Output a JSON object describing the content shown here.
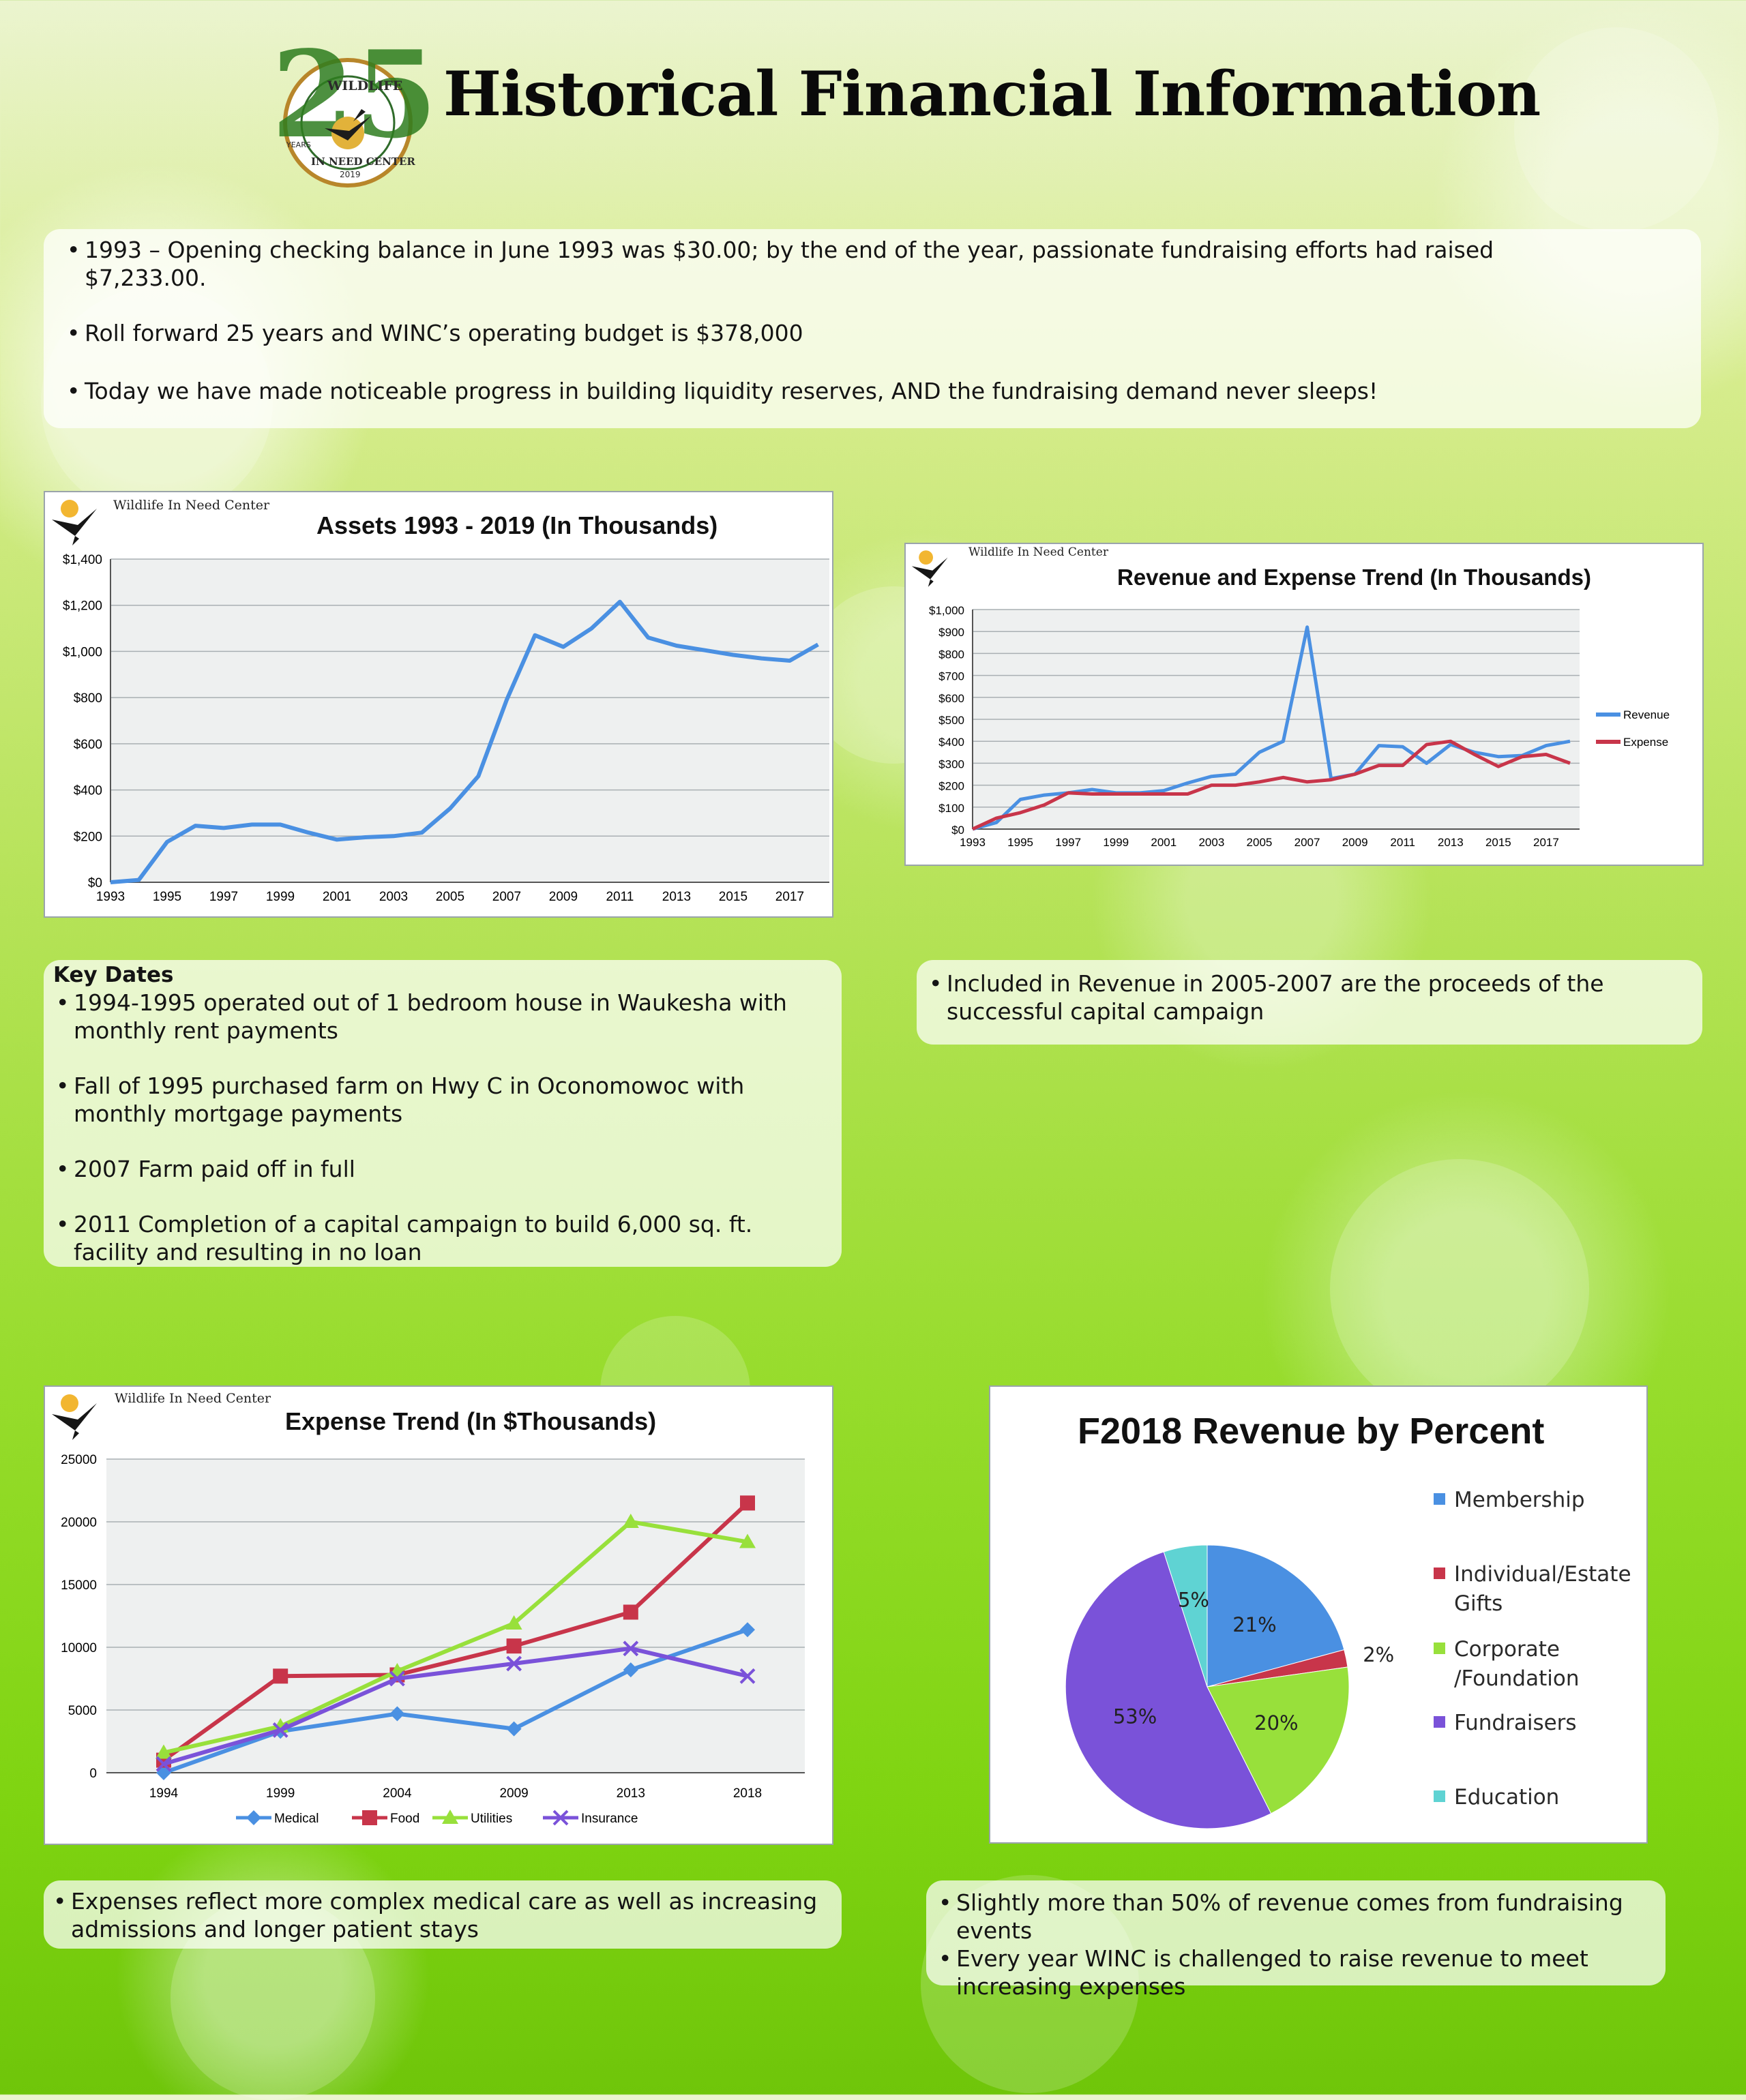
{
  "header": {
    "title": "Historical Financial Information",
    "logo_text": {
      "number": "25",
      "top": "WILDLIFE",
      "bottom": "IN NEED CENTER",
      "side": "YEARS",
      "year": "2019"
    }
  },
  "intro": {
    "bullets": [
      "1993 – Opening checking balance in June 1993 was $30.00; by the end of the year, passionate fundraising efforts had raised $7,233.00.",
      "Roll forward 25 years and WINC’s operating budget is $378,000",
      "Today we have made noticeable progress in building liquidity reserves, AND the fundraising demand never sleeps!"
    ]
  },
  "org_name": "Wildlife In Need Center",
  "key_dates": {
    "heading": "Key Dates",
    "items": [
      "1994-1995 operated out of 1 bedroom house in Waukesha with monthly rent payments",
      "Fall of 1995 purchased farm on Hwy C in Oconomowoc with monthly mortgage payments",
      "2007 Farm paid off in full",
      "2011 Completion of a capital campaign to build 6,000 sq. ft. facility and resulting in no loan"
    ]
  },
  "revenue_note": "Included in Revenue in 2005-2007 are the proceeds of the successful capital campaign",
  "expense_note": "Expenses reflect more complex medical care as well as increasing admissions and longer patient stays",
  "pie_notes": [
    "Slightly more than 50% of revenue comes from fundraising events",
    "Every year WINC is challenged to raise revenue to meet increasing expenses"
  ],
  "colors": {
    "blue": "#4a90e2",
    "red": "#c8354a",
    "green": "#98e03b",
    "purple": "#7a52d9",
    "cyan": "#5fd3d3",
    "grid_bg": "#eef0f0"
  },
  "chart_data": [
    {
      "type": "line",
      "title": "Assets 1993 - 2019 (In Thousands)",
      "xlabel": "",
      "ylabel": "",
      "x": [
        1993,
        1994,
        1995,
        1996,
        1997,
        1998,
        1999,
        2000,
        2001,
        2002,
        2003,
        2004,
        2005,
        2006,
        2007,
        2008,
        2009,
        2010,
        2011,
        2012,
        2013,
        2014,
        2015,
        2016,
        2017,
        2018
      ],
      "x_ticks": [
        "1993",
        "1995",
        "1997",
        "1999",
        "2001",
        "2003",
        "2005",
        "2007",
        "2009",
        "2011",
        "2013",
        "2015",
        "2017"
      ],
      "y_ticks": [
        "$0",
        "$200",
        "$400",
        "$600",
        "$800",
        "$1,000",
        "$1,200",
        "$1,400"
      ],
      "ylim": [
        0,
        1400
      ],
      "grid": true,
      "series": [
        {
          "values": [
            0,
            10,
            175,
            245,
            235,
            250,
            250,
            215,
            185,
            195,
            200,
            215,
            320,
            460,
            790,
            1070,
            1020,
            1100,
            1215,
            1060,
            1025,
            1005,
            985,
            970,
            960,
            1030
          ]
        }
      ]
    },
    {
      "type": "line",
      "title": "Revenue and Expense Trend (In Thousands)",
      "xlabel": "",
      "ylabel": "",
      "x": [
        1993,
        1994,
        1995,
        1996,
        1997,
        1998,
        1999,
        2000,
        2001,
        2002,
        2003,
        2004,
        2005,
        2006,
        2007,
        2008,
        2009,
        2010,
        2011,
        2012,
        2013,
        2014,
        2015,
        2016,
        2017,
        2018
      ],
      "x_ticks": [
        "1993",
        "1995",
        "1997",
        "1999",
        "2001",
        "2003",
        "2005",
        "2007",
        "2009",
        "2011",
        "2013",
        "2015",
        "2017"
      ],
      "y_ticks": [
        "$0",
        "$100",
        "$200",
        "$300",
        "$400",
        "$500",
        "$600",
        "$700",
        "$800",
        "$900",
        "$1,000"
      ],
      "ylim": [
        0,
        1000
      ],
      "grid": true,
      "legend": "right",
      "series": [
        {
          "name": "Revenue",
          "values": [
            0,
            30,
            135,
            155,
            165,
            180,
            165,
            165,
            175,
            210,
            240,
            250,
            350,
            400,
            920,
            230,
            250,
            380,
            375,
            300,
            385,
            350,
            330,
            335,
            380,
            400
          ]
        },
        {
          "name": "Expense",
          "values": [
            0,
            50,
            75,
            110,
            165,
            160,
            160,
            160,
            160,
            160,
            200,
            200,
            215,
            235,
            215,
            225,
            250,
            290,
            290,
            385,
            400,
            340,
            285,
            330,
            340,
            300
          ]
        }
      ]
    },
    {
      "type": "line",
      "title": "Expense Trend (In $Thousands)",
      "xlabel": "",
      "ylabel": "",
      "categories": [
        "1994",
        "1999",
        "2004",
        "2009",
        "2013",
        "2018"
      ],
      "y_ticks": [
        "0",
        "5000",
        "10000",
        "15000",
        "20000",
        "25000"
      ],
      "ylim": [
        0,
        25000
      ],
      "grid": true,
      "legend": "bottom",
      "series": [
        {
          "name": "Medical",
          "marker": "diamond",
          "values": [
            0,
            3300,
            4700,
            3500,
            8200,
            11400
          ]
        },
        {
          "name": "Food",
          "marker": "square",
          "values": [
            1000,
            7700,
            7800,
            10100,
            12800,
            21500
          ]
        },
        {
          "name": "Utilities",
          "marker": "triangle",
          "values": [
            1600,
            3700,
            8100,
            11900,
            20000,
            18400
          ]
        },
        {
          "name": "Insurance",
          "marker": "x",
          "values": [
            700,
            3400,
            7500,
            8700,
            9900,
            7700
          ]
        }
      ]
    },
    {
      "type": "pie",
      "title": "F2018 Revenue by Percent",
      "legend": "right",
      "labels": [
        "Membership",
        "Individual/Estate Gifts",
        "Corporate /Foundation",
        "Fundraisers",
        "Education"
      ],
      "legend_lines": [
        [
          "Membership"
        ],
        [
          "Individual/Estate",
          "Gifts"
        ],
        [
          "Corporate",
          "/Foundation"
        ],
        [
          "Fundraisers"
        ],
        [
          "Education"
        ]
      ],
      "values": [
        21,
        2,
        20,
        53,
        5
      ],
      "value_labels": [
        "21%",
        "2%",
        "20%",
        "53%",
        "5%"
      ]
    }
  ]
}
